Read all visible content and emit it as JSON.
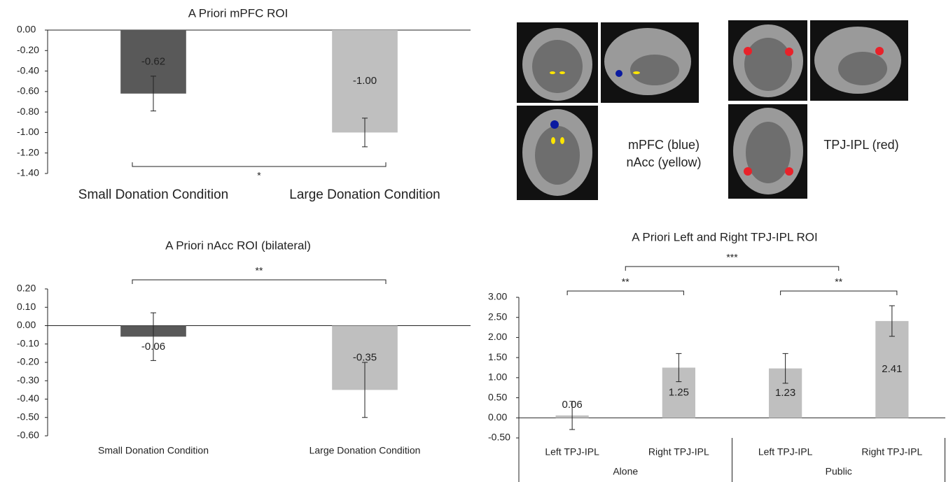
{
  "chart_data": [
    {
      "type": "bar",
      "title": "A Priori mPFC ROI",
      "categories": [
        "Small Donation Condition",
        "Large Donation Condition"
      ],
      "values": [
        -0.62,
        -1.0
      ],
      "value_labels": [
        "-0.62",
        "-1.00"
      ],
      "errors": [
        0.17,
        0.14
      ],
      "colors": [
        "#595959",
        "#bfbfbf"
      ],
      "ylim": [
        -1.4,
        0
      ],
      "yticks": [
        {
          "value": 0,
          "label": "0.00"
        },
        {
          "value": -0.2,
          "label": "-0.20"
        },
        {
          "value": -0.4,
          "label": "-0.40"
        },
        {
          "value": -0.6,
          "label": "-0.60"
        },
        {
          "value": -0.8,
          "label": "-0.80"
        },
        {
          "value": -1.0,
          "label": "-1.00"
        },
        {
          "value": -1.2,
          "label": "-1.20"
        },
        {
          "value": -1.4,
          "label": "-1.40"
        }
      ],
      "annotations": [
        {
          "text": "*",
          "from": 0,
          "to": 1
        }
      ]
    },
    {
      "type": "bar",
      "title": "A Priori nAcc ROI (bilateral)",
      "categories": [
        "Small Donation Condition",
        "Large Donation Condition"
      ],
      "values": [
        -0.06,
        -0.35
      ],
      "value_labels": [
        "-0.06",
        "-0.35"
      ],
      "errors": [
        0.13,
        0.15
      ],
      "colors": [
        "#595959",
        "#bfbfbf"
      ],
      "ylim": [
        -0.6,
        0.2
      ],
      "yticks": [
        {
          "value": 0.2,
          "label": "0.20"
        },
        {
          "value": 0.1,
          "label": "0.10"
        },
        {
          "value": 0,
          "label": "0.00"
        },
        {
          "value": -0.1,
          "label": "-0.10"
        },
        {
          "value": -0.2,
          "label": "-0.20"
        },
        {
          "value": -0.3,
          "label": "-0.30"
        },
        {
          "value": -0.4,
          "label": "-0.40"
        },
        {
          "value": -0.5,
          "label": "-0.50"
        },
        {
          "value": -0.6,
          "label": "-0.60"
        }
      ],
      "annotations": [
        {
          "text": "**",
          "from": 0,
          "to": 1
        }
      ]
    },
    {
      "type": "bar",
      "title": "A Priori Left and Right TPJ-IPL ROI",
      "categories": [
        "Left TPJ-IPL",
        "Right TPJ-IPL",
        "Left TPJ-IPL",
        "Right TPJ-IPL"
      ],
      "groups": [
        "Alone",
        "Public"
      ],
      "values": [
        0.06,
        1.25,
        1.23,
        2.41
      ],
      "value_labels": [
        "0.06",
        "1.25",
        "1.23",
        "2.41"
      ],
      "errors": [
        0.35,
        0.35,
        0.37,
        0.38
      ],
      "colors": [
        "#bfbfbf",
        "#bfbfbf",
        "#bfbfbf",
        "#bfbfbf"
      ],
      "ylim": [
        -0.5,
        3.0
      ],
      "yticks": [
        {
          "value": 3.0,
          "label": "3.00"
        },
        {
          "value": 2.5,
          "label": "2.50"
        },
        {
          "value": 2.0,
          "label": "2.00"
        },
        {
          "value": 1.5,
          "label": "1.50"
        },
        {
          "value": 1.0,
          "label": "1.00"
        },
        {
          "value": 0.5,
          "label": "0.50"
        },
        {
          "value": 0,
          "label": "0.00"
        },
        {
          "value": -0.5,
          "label": "-0.50"
        }
      ],
      "annotations": [
        {
          "text": "**",
          "from": 0,
          "to": 1
        },
        {
          "text": "**",
          "from": 2,
          "to": 3
        },
        {
          "text": "***",
          "groups": [
            0,
            1
          ]
        }
      ]
    }
  ],
  "brain_panel": {
    "labels": [
      "mPFC (blue)",
      "nAcc (yellow)",
      "TPJ-IPL (red)"
    ]
  }
}
